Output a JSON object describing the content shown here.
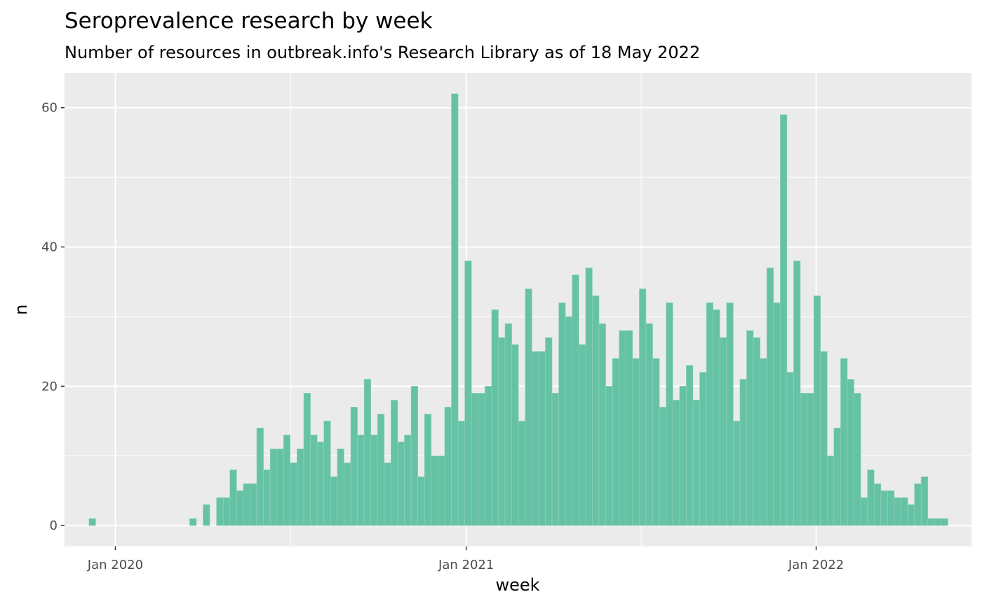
{
  "chart_data": {
    "type": "bar",
    "title": "Seroprevalence research by week",
    "subtitle": "Number of resources in outbreak.info's Research Library as of 18 May 2022",
    "xlabel": "week",
    "ylabel": "n",
    "x_ticks": [
      {
        "label": "Jan 2020",
        "date": "2020-01-01"
      },
      {
        "label": "Jan 2021",
        "date": "2021-01-01"
      },
      {
        "label": "Jan 2022",
        "date": "2022-01-01"
      }
    ],
    "y_ticks": [
      0,
      20,
      40,
      60
    ],
    "ylim": [
      -3,
      65
    ],
    "xlim": [
      "2019-11-09",
      "2022-06-12"
    ],
    "grid": true,
    "colors": {
      "bar_fill": "#66c2a5",
      "panel_bg": "#ebebeb",
      "grid": "#ffffff"
    },
    "x": [
      "2019-12-08",
      "2020-03-22",
      "2020-04-05",
      "2020-04-19",
      "2020-04-26",
      "2020-05-03",
      "2020-05-10",
      "2020-05-17",
      "2020-05-24",
      "2020-05-31",
      "2020-06-07",
      "2020-06-14",
      "2020-06-21",
      "2020-06-28",
      "2020-07-05",
      "2020-07-12",
      "2020-07-19",
      "2020-07-26",
      "2020-08-02",
      "2020-08-09",
      "2020-08-16",
      "2020-08-23",
      "2020-08-30",
      "2020-09-06",
      "2020-09-13",
      "2020-09-20",
      "2020-09-27",
      "2020-10-04",
      "2020-10-11",
      "2020-10-18",
      "2020-10-25",
      "2020-11-01",
      "2020-11-08",
      "2020-11-15",
      "2020-11-22",
      "2020-11-29",
      "2020-12-06",
      "2020-12-13",
      "2020-12-20",
      "2020-12-27",
      "2021-01-03",
      "2021-01-10",
      "2021-01-17",
      "2021-01-24",
      "2021-01-31",
      "2021-02-07",
      "2021-02-14",
      "2021-02-21",
      "2021-02-28",
      "2021-03-07",
      "2021-03-14",
      "2021-03-21",
      "2021-03-28",
      "2021-04-04",
      "2021-04-11",
      "2021-04-18",
      "2021-04-25",
      "2021-05-02",
      "2021-05-09",
      "2021-05-16",
      "2021-05-23",
      "2021-05-30",
      "2021-06-06",
      "2021-06-13",
      "2021-06-20",
      "2021-06-27",
      "2021-07-04",
      "2021-07-11",
      "2021-07-18",
      "2021-07-25",
      "2021-08-01",
      "2021-08-08",
      "2021-08-15",
      "2021-08-22",
      "2021-08-29",
      "2021-09-05",
      "2021-09-12",
      "2021-09-19",
      "2021-09-26",
      "2021-10-03",
      "2021-10-10",
      "2021-10-17",
      "2021-10-24",
      "2021-10-31",
      "2021-11-07",
      "2021-11-14",
      "2021-11-21",
      "2021-11-28",
      "2021-12-05",
      "2021-12-12",
      "2021-12-19",
      "2021-12-26",
      "2022-01-02",
      "2022-01-09",
      "2022-01-16",
      "2022-01-23",
      "2022-01-30",
      "2022-02-06",
      "2022-02-13",
      "2022-02-20",
      "2022-02-27",
      "2022-03-06",
      "2022-03-13",
      "2022-03-20",
      "2022-03-27",
      "2022-04-03",
      "2022-04-10",
      "2022-04-17",
      "2022-04-24",
      "2022-05-01",
      "2022-05-08",
      "2022-05-15"
    ],
    "values": [
      1,
      1,
      3,
      4,
      4,
      8,
      5,
      6,
      6,
      14,
      8,
      11,
      11,
      13,
      9,
      11,
      19,
      13,
      12,
      15,
      7,
      11,
      9,
      17,
      13,
      21,
      13,
      16,
      9,
      18,
      12,
      13,
      20,
      7,
      16,
      10,
      10,
      17,
      62,
      15,
      38,
      19,
      19,
      20,
      31,
      27,
      29,
      26,
      15,
      34,
      25,
      25,
      27,
      19,
      32,
      30,
      36,
      26,
      37,
      33,
      29,
      20,
      24,
      28,
      28,
      24,
      34,
      29,
      24,
      17,
      32,
      18,
      20,
      23,
      18,
      22,
      32,
      31,
      27,
      32,
      15,
      21,
      28,
      27,
      24,
      37,
      32,
      59,
      22,
      38,
      19,
      19,
      33,
      25,
      10,
      14,
      24,
      21,
      19,
      4,
      8,
      6,
      5,
      5,
      4,
      4,
      3,
      6,
      7,
      1,
      1,
      1
    ]
  }
}
